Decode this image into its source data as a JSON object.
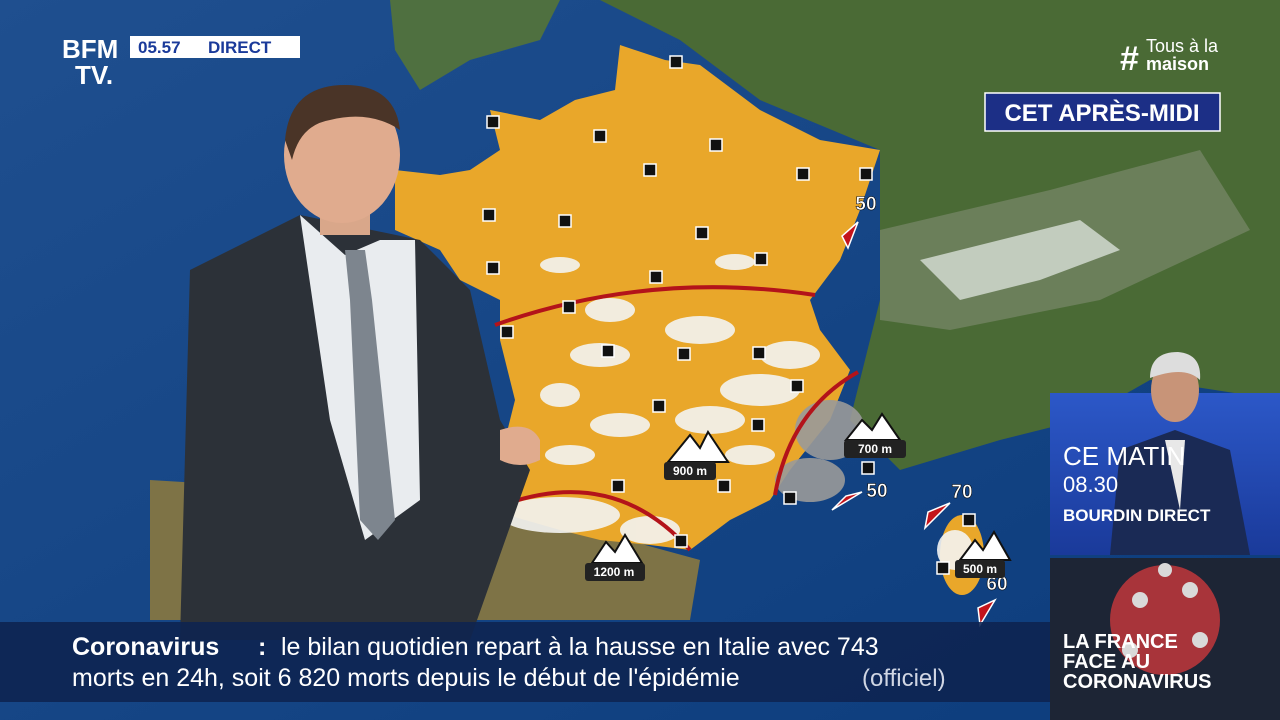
{
  "header": {
    "logo_line1": "BFM",
    "logo_line2": "TV.",
    "time": "05.57",
    "live": "DIRECT",
    "hashtag_symbol": "#",
    "hashtag_line1": "Tous à la",
    "hashtag_line2": "maison"
  },
  "map": {
    "period": "CET APRÈS-MIDI",
    "wind_labels": [
      "50",
      "50",
      "70",
      "60"
    ],
    "altitude_labels": [
      "900 m",
      "700 m",
      "1200 m",
      "500 m"
    ]
  },
  "promo": {
    "line1": "CE MATIN",
    "line2": "08.30",
    "line3": "BOURDIN DIRECT"
  },
  "ticker": {
    "topic": "Coronavirus",
    "separator": ":",
    "line1": "le bilan quotidien repart à la hausse en Italie avec 743",
    "line2": "morts en 24h, soit 6 820 morts depuis le début de l'épidémie",
    "source": "(officiel)"
  },
  "corner_banner": {
    "lines": [
      "LA FRANCE",
      "FACE AU",
      "CORONAVIRUS"
    ]
  }
}
